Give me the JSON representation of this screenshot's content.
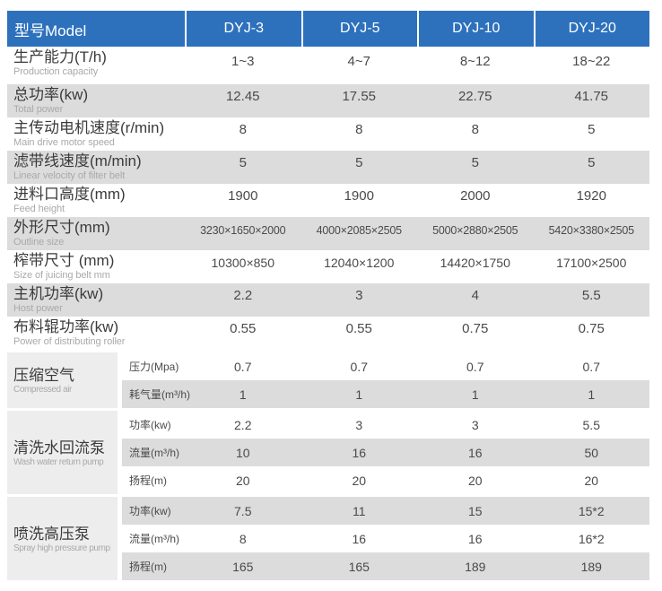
{
  "colors": {
    "header-blue": "#2d71bd",
    "band-gray": "#dcdcdc",
    "group-gray": "#ededed"
  },
  "header": {
    "model_label": "型号Model",
    "columns": [
      "DYJ-3",
      "DYJ-5",
      "DYJ-10",
      "DYJ-20"
    ]
  },
  "rows": [
    {
      "zh": "生产能力(T/h)",
      "en": "Production capacity",
      "values": [
        "1~3",
        "4~7",
        "8~12",
        "18~22"
      ]
    },
    {
      "zh": "总功率(kw)",
      "en": "Total power",
      "values": [
        "12.45",
        "17.55",
        "22.75",
        "41.75"
      ]
    },
    {
      "zh": "主传动电机速度(r/min)",
      "en": "Main drive motor speed",
      "values": [
        "8",
        "8",
        "8",
        "5"
      ]
    },
    {
      "zh": "滤带线速度(m/min)",
      "en": "Linear velocity of filter belt",
      "values": [
        "5",
        "5",
        "5",
        "5"
      ]
    },
    {
      "zh": "进料口高度(mm)",
      "en": "Feed height",
      "values": [
        "1900",
        "1900",
        "2000",
        "1920"
      ]
    },
    {
      "zh": "外形尺寸(mm)",
      "en": "Outline size",
      "values": [
        "3230×1650×2000",
        "4000×2085×2505",
        "5000×2880×2505",
        "5420×3380×2505"
      ]
    },
    {
      "zh": "榨带尺寸 (mm)",
      "en": "Size of juicing belt mm",
      "values": [
        "10300×850",
        "12040×1200",
        "14420×1750",
        "17100×2500"
      ]
    },
    {
      "zh": "主机功率(kw)",
      "en": "Host power",
      "values": [
        "2.2",
        "3",
        "4",
        "5.5"
      ]
    },
    {
      "zh": "布料辊功率(kw)",
      "en": "Power of distributing roller",
      "values": [
        "0.55",
        "0.55",
        "0.75",
        "0.75"
      ]
    }
  ],
  "groups": [
    {
      "zh": "压缩空气",
      "en": "Compressed air",
      "rows": [
        {
          "label": "压力(Mpa)",
          "values": [
            "0.7",
            "0.7",
            "0.7",
            "0.7"
          ]
        },
        {
          "label": "耗气量(m³/h)",
          "values": [
            "1",
            "1",
            "1",
            "1"
          ]
        }
      ]
    },
    {
      "zh": "清洗水回流泵",
      "en": "Wash water return pump",
      "rows": [
        {
          "label": "功率(kw)",
          "values": [
            "2.2",
            "3",
            "3",
            "5.5"
          ]
        },
        {
          "label": "流量(m³/h)",
          "values": [
            "10",
            "16",
            "16",
            "50"
          ]
        },
        {
          "label": "扬程(m)",
          "values": [
            "20",
            "20",
            "20",
            "20"
          ]
        }
      ]
    },
    {
      "zh": "喷洗高压泵",
      "en": "Spray high pressure pump",
      "rows": [
        {
          "label": "功率(kw)",
          "values": [
            "7.5",
            "11",
            "15",
            "15*2"
          ]
        },
        {
          "label": "流量(m³/h)",
          "values": [
            "8",
            "16",
            "16",
            "16*2"
          ]
        },
        {
          "label": "扬程(m)",
          "values": [
            "165",
            "165",
            "189",
            "189"
          ]
        }
      ]
    }
  ]
}
